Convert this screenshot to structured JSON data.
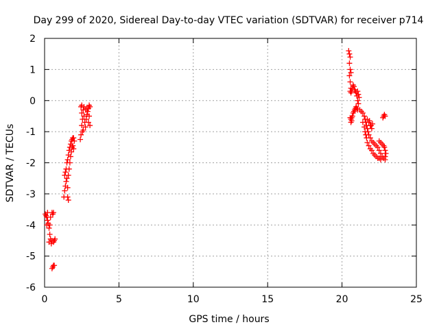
{
  "chart_data": {
    "type": "scatter",
    "title": "Day 299 of 2020, Sidereal Day-to-day VTEC variation (SDTVAR) for receiver p714",
    "xlabel": "GPS time / hours",
    "ylabel": "SDTVAR / TECUs",
    "xlim": [
      0,
      25
    ],
    "ylim": [
      -6,
      2
    ],
    "xticks": [
      0,
      5,
      10,
      15,
      20,
      25
    ],
    "yticks": [
      -6,
      -5,
      -4,
      -3,
      -2,
      -1,
      0,
      1,
      2
    ],
    "grid": true,
    "marker": "plus",
    "color": "#ff0000",
    "series": [
      {
        "name": "SDTVAR",
        "points": [
          [
            0.05,
            -3.65
          ],
          [
            0.1,
            -3.7
          ],
          [
            0.15,
            -3.75
          ],
          [
            0.2,
            -3.85
          ],
          [
            0.25,
            -3.95
          ],
          [
            0.3,
            -4.1
          ],
          [
            0.35,
            -4.3
          ],
          [
            0.4,
            -4.45
          ],
          [
            0.45,
            -4.6
          ],
          [
            0.3,
            -4.55
          ],
          [
            0.35,
            -4.0
          ],
          [
            0.4,
            -3.75
          ],
          [
            0.5,
            -3.6
          ],
          [
            0.55,
            -3.65
          ],
          [
            0.6,
            -3.6
          ],
          [
            0.5,
            -4.5
          ],
          [
            0.6,
            -4.55
          ],
          [
            0.65,
            -4.5
          ],
          [
            0.7,
            -4.45
          ],
          [
            0.5,
            -5.4
          ],
          [
            0.55,
            -5.35
          ],
          [
            0.6,
            -5.3
          ],
          [
            0.65,
            -5.3
          ],
          [
            0.2,
            -3.6
          ],
          [
            0.15,
            -4.0
          ],
          [
            1.3,
            -3.1
          ],
          [
            1.35,
            -2.9
          ],
          [
            1.4,
            -2.75
          ],
          [
            1.45,
            -2.6
          ],
          [
            1.35,
            -2.4
          ],
          [
            1.4,
            -2.3
          ],
          [
            1.5,
            -2.5
          ],
          [
            1.55,
            -2.8
          ],
          [
            1.6,
            -3.2
          ],
          [
            1.55,
            -3.1
          ],
          [
            1.45,
            -2.2
          ],
          [
            1.5,
            -2.0
          ],
          [
            1.55,
            -1.9
          ],
          [
            1.6,
            -1.75
          ],
          [
            1.65,
            -1.6
          ],
          [
            1.7,
            -1.5
          ],
          [
            1.75,
            -1.4
          ],
          [
            1.8,
            -1.3
          ],
          [
            1.85,
            -1.25
          ],
          [
            1.9,
            -1.2
          ],
          [
            1.95,
            -1.2
          ],
          [
            2.0,
            -1.3
          ],
          [
            1.6,
            -2.4
          ],
          [
            1.65,
            -2.2
          ],
          [
            1.7,
            -2.0
          ],
          [
            1.75,
            -1.8
          ],
          [
            1.8,
            -1.65
          ],
          [
            1.85,
            -1.5
          ],
          [
            1.9,
            -1.45
          ],
          [
            1.95,
            -1.55
          ],
          [
            2.4,
            -1.25
          ],
          [
            2.45,
            -1.1
          ],
          [
            2.5,
            -0.8
          ],
          [
            2.55,
            -0.6
          ],
          [
            2.5,
            -0.4
          ],
          [
            2.45,
            -0.2
          ],
          [
            2.5,
            -0.15
          ],
          [
            2.6,
            -0.3
          ],
          [
            2.65,
            -0.5
          ],
          [
            2.7,
            -0.7
          ],
          [
            2.75,
            -0.85
          ],
          [
            2.8,
            -0.6
          ],
          [
            2.85,
            -0.45
          ],
          [
            2.9,
            -0.35
          ],
          [
            2.95,
            -0.25
          ],
          [
            3.0,
            -0.15
          ],
          [
            3.05,
            -0.2
          ],
          [
            3.0,
            -0.5
          ],
          [
            2.95,
            -0.7
          ],
          [
            3.05,
            -0.8
          ],
          [
            2.6,
            -0.95
          ],
          [
            2.55,
            -1.0
          ],
          [
            2.75,
            -0.3
          ],
          [
            2.85,
            -0.25
          ],
          [
            2.65,
            -0.2
          ],
          [
            20.45,
            1.6
          ],
          [
            20.5,
            1.5
          ],
          [
            20.55,
            1.4
          ],
          [
            20.5,
            1.2
          ],
          [
            20.55,
            1.0
          ],
          [
            20.6,
            0.9
          ],
          [
            20.5,
            0.8
          ],
          [
            20.55,
            0.6
          ],
          [
            20.6,
            0.4
          ],
          [
            20.55,
            0.3
          ],
          [
            20.6,
            0.25
          ],
          [
            20.65,
            0.3
          ],
          [
            20.7,
            0.4
          ],
          [
            20.75,
            0.5
          ],
          [
            20.8,
            0.45
          ],
          [
            20.85,
            0.35
          ],
          [
            20.9,
            0.3
          ],
          [
            20.95,
            0.25
          ],
          [
            21.0,
            0.15
          ],
          [
            21.05,
            0.0
          ],
          [
            21.1,
            -0.1
          ],
          [
            21.05,
            0.3
          ],
          [
            21.1,
            0.2
          ],
          [
            21.15,
            0.1
          ],
          [
            20.55,
            -0.55
          ],
          [
            20.6,
            -0.6
          ],
          [
            20.65,
            -0.65
          ],
          [
            20.7,
            -0.5
          ],
          [
            20.75,
            -0.4
          ],
          [
            20.8,
            -0.35
          ],
          [
            20.85,
            -0.3
          ],
          [
            20.9,
            -0.25
          ],
          [
            20.95,
            -0.2
          ],
          [
            21.0,
            -0.25
          ],
          [
            21.05,
            -0.3
          ],
          [
            20.6,
            -0.7
          ],
          [
            20.65,
            -0.55
          ],
          [
            21.2,
            -0.3
          ],
          [
            21.3,
            -0.35
          ],
          [
            21.4,
            -0.4
          ],
          [
            21.5,
            -0.5
          ],
          [
            21.55,
            -0.6
          ],
          [
            21.6,
            -0.7
          ],
          [
            21.65,
            -0.8
          ],
          [
            21.7,
            -0.9
          ],
          [
            21.75,
            -1.0
          ],
          [
            21.8,
            -1.1
          ],
          [
            21.9,
            -1.2
          ],
          [
            22.0,
            -1.3
          ],
          [
            22.1,
            -1.35
          ],
          [
            22.2,
            -1.4
          ],
          [
            22.3,
            -1.45
          ],
          [
            22.4,
            -1.5
          ],
          [
            22.5,
            -1.6
          ],
          [
            22.6,
            -1.7
          ],
          [
            22.7,
            -1.8
          ],
          [
            22.8,
            -1.85
          ],
          [
            22.9,
            -1.9
          ],
          [
            21.4,
            -0.7
          ],
          [
            21.5,
            -0.85
          ],
          [
            21.55,
            -1.0
          ],
          [
            21.6,
            -1.1
          ],
          [
            21.65,
            -1.2
          ],
          [
            21.7,
            -1.35
          ],
          [
            21.8,
            -1.45
          ],
          [
            21.9,
            -1.55
          ],
          [
            22.0,
            -1.6
          ],
          [
            22.1,
            -1.7
          ],
          [
            22.2,
            -1.75
          ],
          [
            22.3,
            -1.8
          ],
          [
            22.4,
            -1.85
          ],
          [
            22.5,
            -1.85
          ],
          [
            22.6,
            -1.9
          ],
          [
            21.7,
            -0.6
          ],
          [
            21.8,
            -0.7
          ],
          [
            21.9,
            -0.8
          ],
          [
            22.0,
            -0.9
          ],
          [
            21.95,
            -0.8
          ],
          [
            22.05,
            -0.75
          ],
          [
            21.85,
            -0.65
          ],
          [
            22.5,
            -1.3
          ],
          [
            22.6,
            -1.35
          ],
          [
            22.7,
            -1.4
          ],
          [
            22.8,
            -1.45
          ],
          [
            22.85,
            -1.5
          ],
          [
            22.9,
            -1.6
          ],
          [
            22.95,
            -1.7
          ],
          [
            22.9,
            -1.8
          ],
          [
            22.75,
            -0.55
          ],
          [
            22.8,
            -0.5
          ],
          [
            22.85,
            -0.45
          ],
          [
            22.9,
            -0.5
          ]
        ]
      }
    ]
  }
}
